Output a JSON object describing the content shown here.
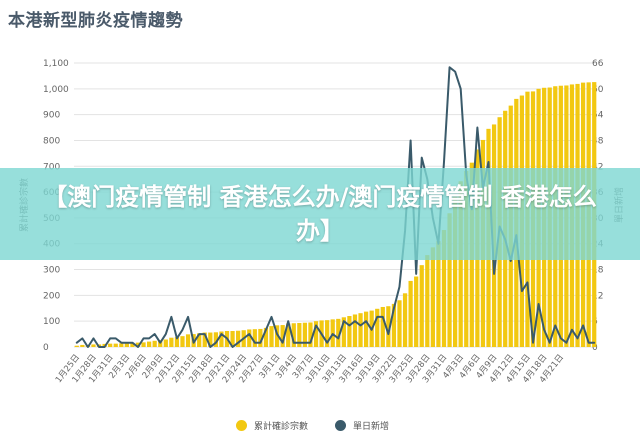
{
  "header": {
    "title": "本港新型肺炎疫情趨勢"
  },
  "overlay": {
    "text": "【澳门疫情管制 香港怎么办/澳门疫情管制 香港怎么办】"
  },
  "colors": {
    "cumulative": "#f2c811",
    "daily": "#3a5a6a",
    "grid": "#e3e3e3",
    "axis_text": "#666666"
  },
  "chart_data": {
    "type": "bar",
    "title": "本港新型肺炎疫情趨勢",
    "xlabel": "",
    "ylabel_left": "累計確診宗數",
    "ylabel_right": "單日新增",
    "ylim_left": [
      0,
      1100
    ],
    "ylim_right": [
      0,
      66
    ],
    "yticks_left": [
      "0",
      "100",
      "200",
      "300",
      "400",
      "500",
      "600",
      "700",
      "800",
      "900",
      "1,000",
      "1,100"
    ],
    "yticks_right": [
      "0",
      "6",
      "12",
      "18",
      "24",
      "30",
      "36",
      "42",
      "48",
      "54",
      "60",
      "66"
    ],
    "x_tick_labels": [
      "1月25日",
      "1月28日",
      "1月31日",
      "2月3日",
      "2月6日",
      "2月9日",
      "2月12日",
      "2月15日",
      "2月18日",
      "2月21日",
      "2月24日",
      "2月27日",
      "3月1日",
      "3月4日",
      "3月7日",
      "3月10日",
      "3月13日",
      "3月16日",
      "3月19日",
      "3月22日",
      "3月25日",
      "3月28日",
      "3月31日",
      "4月3日",
      "4月6日",
      "4月9日",
      "4月12日",
      "4月15日",
      "4月18日",
      "4月21日"
    ],
    "legend": [
      {
        "name": "累計確診宗數",
        "color": "#f2c811"
      },
      {
        "name": "單日新增",
        "color": "#3a5a6a"
      }
    ],
    "legend_position": "bottom",
    "series": [
      {
        "name": "累計確診宗數",
        "type": "bar",
        "axis": "left",
        "values": [
          5,
          8,
          8,
          10,
          10,
          12,
          13,
          13,
          14,
          15,
          15,
          17,
          18,
          21,
          24,
          26,
          29,
          36,
          38,
          42,
          49,
          50,
          53,
          56,
          56,
          57,
          60,
          62,
          62,
          63,
          65,
          68,
          69,
          70,
          74,
          81,
          84,
          85,
          91,
          92,
          93,
          94,
          95,
          100,
          103,
          104,
          107,
          109,
          115,
          120,
          126,
          131,
          137,
          141,
          148,
          155,
          158,
          167,
          181,
          208,
          256,
          273,
          317,
          356,
          386,
          410,
          453,
          518,
          582,
          642,
          682,
          714,
          765,
          802,
          845,
          862,
          890,
          915,
          935,
          961,
          974,
          989,
          990,
          1000,
          1004,
          1005,
          1010,
          1012,
          1013,
          1017,
          1019,
          1024,
          1025,
          1026
        ],
        "x_start": "1月25日"
      },
      {
        "name": "單日新增",
        "type": "line",
        "axis": "right",
        "values": [
          1,
          2,
          0,
          2,
          0,
          0,
          2,
          2,
          1,
          1,
          1,
          0,
          2,
          2,
          3,
          1,
          3,
          7,
          2,
          4,
          7,
          1,
          3,
          3,
          0,
          1,
          3,
          2,
          0,
          1,
          2,
          3,
          1,
          1,
          4,
          7,
          3,
          1,
          6,
          1,
          1,
          1,
          1,
          5,
          3,
          1,
          3,
          2,
          6,
          5,
          6,
          5,
          6,
          4,
          7,
          7,
          3,
          9,
          14,
          27,
          48,
          17,
          44,
          39,
          30,
          24,
          43,
          65,
          64,
          60,
          40,
          32,
          51,
          37,
          43,
          17,
          28,
          25,
          20,
          26,
          13,
          15,
          1,
          10,
          4,
          1,
          5,
          2,
          1,
          4,
          2,
          5,
          1,
          1
        ],
        "x_start": "1月25日"
      }
    ]
  }
}
